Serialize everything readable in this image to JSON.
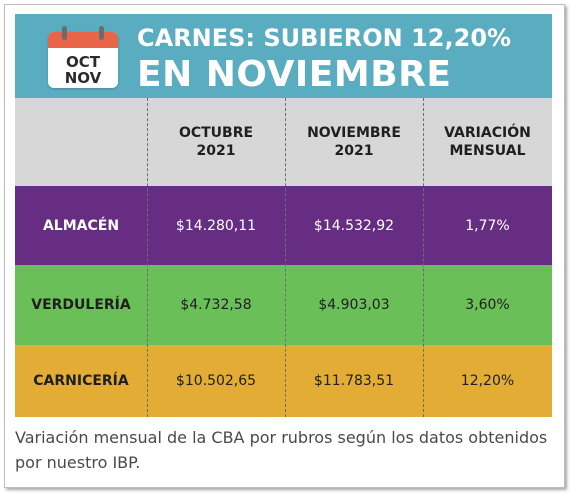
{
  "header": {
    "calendar_line1": "OCT",
    "calendar_line2": "NOV",
    "title_line1": "CARNES: SUBIERON 12,20%",
    "title_line2": "EN NOVIEMBRE"
  },
  "colors": {
    "header": "#5aacc0",
    "header_row": "#d7d7d7",
    "almacen": "#672d83",
    "verduleria": "#6bbf59",
    "carniceria": "#e3ac35",
    "calendar_top": "#e8654a"
  },
  "icons": [
    "calendar-icon"
  ],
  "chart_data": {
    "type": "table",
    "columns": [
      "",
      "OCTUBRE 2021",
      "NOVIEMBRE 2021",
      "VARIACIÓN MENSUAL"
    ],
    "column_lines": [
      [
        "",
        ""
      ],
      [
        "OCTUBRE",
        "2021"
      ],
      [
        "NOVIEMBRE",
        "2021"
      ],
      [
        "VARIACIÓN",
        "MENSUAL"
      ]
    ],
    "rows": [
      {
        "label": "ALMACÉN",
        "octubre": "$14.280,11",
        "noviembre": "$14.532,92",
        "variacion": "1,77%"
      },
      {
        "label": "VERDULERÍA",
        "octubre": "$4.732,58",
        "noviembre": "$4.903,03",
        "variacion": "3,60%"
      },
      {
        "label": "CARNICERÍA",
        "octubre": "$10.502,65",
        "noviembre": "$11.783,51",
        "variacion": "12,20%"
      }
    ],
    "values": {
      "octubre_2021": [
        14280.11,
        4732.58,
        10502.65
      ],
      "noviembre_2021": [
        14532.92,
        4903.03,
        11783.51
      ],
      "variacion_mensual_pct": [
        1.77,
        3.6,
        12.2
      ]
    }
  },
  "caption": "Variación mensual de la CBA por rubros según los datos obtenidos por nuestro IBP."
}
